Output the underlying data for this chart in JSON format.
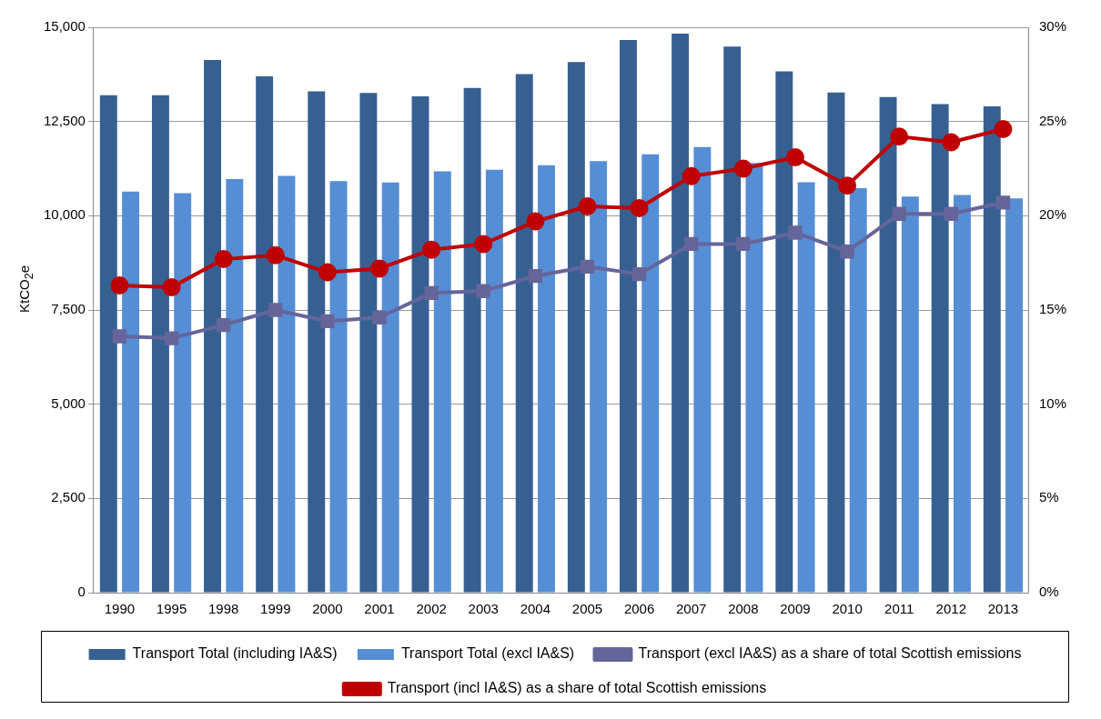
{
  "chart_data": {
    "type": "bar",
    "ylabel": "KtCO$_{2}$e",
    "categories": [
      "1990",
      "1995",
      "1998",
      "1999",
      "2000",
      "2001",
      "2002",
      "2003",
      "2004",
      "2005",
      "2006",
      "2007",
      "2008",
      "2009",
      "2010",
      "2011",
      "2012",
      "2013"
    ],
    "series": [
      {
        "name": "Transport Total (including IA&S)",
        "color": "#366092",
        "values": [
          13200,
          13200,
          14130,
          13700,
          13300,
          13260,
          13170,
          13390,
          13760,
          14080,
          14660,
          14830,
          14490,
          13830,
          13270,
          13150,
          12960,
          12900
        ]
      },
      {
        "name": "Transport Total (excl IA&S)",
        "color": "#558ed5",
        "values": [
          10640,
          10600,
          10970,
          11060,
          10920,
          10880,
          11180,
          11220,
          11340,
          11450,
          11630,
          11820,
          11400,
          10890,
          10730,
          10510,
          10550,
          10460
        ]
      },
      {
        "name": "Transport (excl IA&S) as a share of total Scottish emissions",
        "type": "line",
        "axis": "y2",
        "marker": "square",
        "color": "#65659b",
        "values": [
          13.6,
          13.5,
          14.2,
          15.0,
          14.4,
          14.6,
          15.9,
          16.0,
          16.8,
          17.3,
          16.9,
          18.5,
          18.5,
          19.1,
          18.1,
          20.1,
          20.1,
          20.7
        ]
      },
      {
        "name": "Transport (incl IA&S) as a share of total Scottish emissions",
        "type": "line",
        "axis": "y2",
        "marker": "circle",
        "color": "#c00000",
        "values": [
          16.3,
          16.2,
          17.7,
          17.9,
          17.0,
          17.2,
          18.2,
          18.5,
          19.7,
          20.5,
          20.4,
          22.1,
          22.5,
          23.1,
          21.6,
          24.2,
          23.9,
          24.6
        ]
      }
    ],
    "ylim": [
      0,
      15000
    ],
    "yticks": [
      {
        "value": 0,
        "label": "0"
      },
      {
        "value": 2500,
        "label": "2,500"
      },
      {
        "value": 5000,
        "label": "5,000"
      },
      {
        "value": 7500,
        "label": "7,500"
      },
      {
        "value": 10000,
        "label": "10,000"
      },
      {
        "value": 12500,
        "label": "12,500"
      },
      {
        "value": 15000,
        "label": "15,000"
      }
    ],
    "y2lim": [
      0,
      30
    ],
    "y2ticks": [
      {
        "value": 0,
        "label": "0%"
      },
      {
        "value": 5,
        "label": "5%"
      },
      {
        "value": 10,
        "label": "10%"
      },
      {
        "value": 15,
        "label": "15%"
      },
      {
        "value": 20,
        "label": "20%"
      },
      {
        "value": 25,
        "label": "25%"
      },
      {
        "value": 30,
        "label": "30%"
      }
    ],
    "grid": "y",
    "legend": "bottom"
  }
}
